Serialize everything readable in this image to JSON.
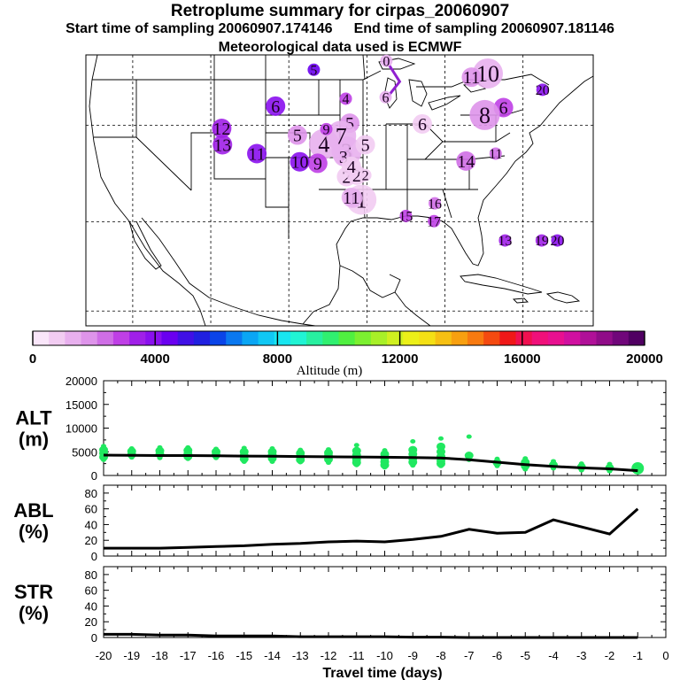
{
  "header": {
    "title": "Retroplume summary for cirpas_20060907",
    "subtitle_start": "Start time of sampling 20060907.174146",
    "subtitle_end": "End time of sampling 20060907.181146",
    "met_line": "Meteorological data used is ECMWF"
  },
  "colorbar": {
    "colors": [
      "#fae6fa",
      "#f2ccf2",
      "#e8b0ee",
      "#de94ea",
      "#cf6ee6",
      "#bf3fe6",
      "#a020e8",
      "#8a10ee",
      "#6a00f0",
      "#4010e6",
      "#2020e0",
      "#0a44e8",
      "#0a78f0",
      "#0aa6f4",
      "#10c8f4",
      "#18e6f0",
      "#20f4d4",
      "#28f0a0",
      "#30f070",
      "#50f040",
      "#7cf030",
      "#a8f028",
      "#d0f020",
      "#ecf018",
      "#f4e014",
      "#f6c012",
      "#f8a010",
      "#f87a10",
      "#f44a10",
      "#f01818",
      "#f01050",
      "#f0107a",
      "#e81090",
      "#d010a0",
      "#b01098",
      "#900c88",
      "#70067a",
      "#500062"
    ],
    "ticks": [
      "0",
      "4000",
      "8000",
      "12000",
      "16000",
      "20000"
    ],
    "label": "Altitude (m)"
  },
  "map": {
    "points": [
      {
        "label": "0",
        "lon": -87.5,
        "lat": 48.7,
        "alt": 1500,
        "size": 1
      },
      {
        "label": "1",
        "lon": -90.7,
        "lat": 30.0,
        "alt": 900,
        "size": 3
      },
      {
        "label": "1",
        "lon": -91.8,
        "lat": 30.2,
        "alt": 1300,
        "size": 2
      },
      {
        "label": "2",
        "lon": -92.6,
        "lat": 33.1,
        "alt": 1000,
        "size": 2
      },
      {
        "label": "2",
        "lon": -91.3,
        "lat": 33.3,
        "alt": 900,
        "size": 2
      },
      {
        "label": "2",
        "lon": -90.2,
        "lat": 33.3,
        "alt": 800,
        "size": 1
      },
      {
        "label": "3",
        "lon": -92.6,
        "lat": 36.5,
        "alt": 1200,
        "size": 3
      },
      {
        "label": "3",
        "lon": -93.0,
        "lat": 35.8,
        "alt": 1100,
        "size": 2
      },
      {
        "label": "4",
        "lon": -92.0,
        "lat": 34.5,
        "alt": 900,
        "size": 2
      },
      {
        "label": "4",
        "lon": -95.5,
        "lat": 37.5,
        "alt": 1400,
        "size": 3
      },
      {
        "label": "4",
        "lon": -92.7,
        "lat": 43.6,
        "alt": 2800,
        "size": 1
      },
      {
        "label": "5",
        "lon": -90.2,
        "lat": 37.4,
        "alt": 900,
        "size": 2
      },
      {
        "label": "5",
        "lon": -92.2,
        "lat": 40.3,
        "alt": 2000,
        "size": 2
      },
      {
        "label": "5",
        "lon": -98.9,
        "lat": 38.7,
        "alt": 1800,
        "size": 2
      },
      {
        "label": "5",
        "lon": -96.8,
        "lat": 47.5,
        "alt": 4300,
        "size": 1
      },
      {
        "label": "6",
        "lon": -87.6,
        "lat": 43.8,
        "alt": 1500,
        "size": 1
      },
      {
        "label": "6",
        "lon": -82.9,
        "lat": 40.2,
        "alt": 900,
        "size": 2
      },
      {
        "label": "6",
        "lon": -101.7,
        "lat": 42.6,
        "alt": 4100,
        "size": 2
      },
      {
        "label": "6",
        "lon": -72.5,
        "lat": 42.4,
        "alt": 2800,
        "size": 2
      },
      {
        "label": "7",
        "lon": -93.3,
        "lat": 38.6,
        "alt": 1200,
        "size": 3
      },
      {
        "label": "8",
        "lon": -74.9,
        "lat": 41.4,
        "alt": 1700,
        "size": 3
      },
      {
        "label": "9",
        "lon": -96.3,
        "lat": 34.9,
        "alt": 2800,
        "size": 2
      },
      {
        "label": "9",
        "lon": -95.2,
        "lat": 39.5,
        "alt": 2800,
        "size": 1
      },
      {
        "label": "10",
        "lon": -74.5,
        "lat": 47.0,
        "alt": 1500,
        "size": 3
      },
      {
        "label": "10",
        "lon": -98.6,
        "lat": 35.1,
        "alt": 3700,
        "size": 2
      },
      {
        "label": "11",
        "lon": -92.0,
        "lat": 30.3,
        "alt": 1300,
        "size": 2
      },
      {
        "label": "11",
        "lon": -76.6,
        "lat": 46.5,
        "alt": 1800,
        "size": 2
      },
      {
        "label": "11",
        "lon": -73.5,
        "lat": 36.2,
        "alt": 2400,
        "size": 1
      },
      {
        "label": "11",
        "lon": -104.1,
        "lat": 36.2,
        "alt": 4000,
        "size": 2
      },
      {
        "label": "12",
        "lon": -108.6,
        "lat": 39.6,
        "alt": 3500,
        "size": 2
      },
      {
        "label": "13",
        "lon": -108.5,
        "lat": 37.4,
        "alt": 3200,
        "size": 2
      },
      {
        "label": "13",
        "lon": -72.3,
        "lat": 24.5,
        "alt": 3500,
        "size": 1
      },
      {
        "label": "14",
        "lon": -77.3,
        "lat": 35.2,
        "alt": 2200,
        "size": 2
      },
      {
        "label": "15",
        "lon": -85.0,
        "lat": 27.8,
        "alt": 2800,
        "size": 1
      },
      {
        "label": "16",
        "lon": -81.3,
        "lat": 29.5,
        "alt": 2600,
        "size": 1
      },
      {
        "label": "17",
        "lon": -81.4,
        "lat": 27.1,
        "alt": 2800,
        "size": 1
      },
      {
        "label": "19",
        "lon": -67.6,
        "lat": 24.5,
        "alt": 3400,
        "size": 1
      },
      {
        "label": "20",
        "lon": -65.6,
        "lat": 24.5,
        "alt": 4200,
        "size": 1
      },
      {
        "label": "20",
        "lon": -67.5,
        "lat": 44.8,
        "alt": 4200,
        "size": 1
      }
    ]
  },
  "chart_data": [
    {
      "type": "scatter",
      "title": "ALT (m)",
      "panel_label_line1": "ALT",
      "panel_label_line2": "(m)",
      "xlabel": "Travel time (days)",
      "ylabel": "ALT (m)",
      "xlim": [
        -20,
        0
      ],
      "ylim": [
        0,
        20000
      ],
      "yticks": [
        "0",
        "5000",
        "10000",
        "15000",
        "20000"
      ],
      "mean_line": {
        "x": [
          -20,
          -19,
          -18,
          -17,
          -16,
          -15,
          -14,
          -13,
          -12,
          -11,
          -10,
          -9,
          -8,
          -7,
          -6,
          -5,
          -4,
          -3,
          -2,
          -1
        ],
        "y": [
          4300,
          4250,
          4200,
          4200,
          4150,
          4100,
          4050,
          4000,
          3950,
          3900,
          3850,
          3800,
          3700,
          3300,
          2800,
          2300,
          1900,
          1600,
          1400,
          1000
        ]
      },
      "particles": [
        {
          "x": -20,
          "y": [
            6200,
            5400,
            4700,
            3900,
            3300
          ]
        },
        {
          "x": -19,
          "y": [
            5700,
            5100,
            4400,
            3800
          ]
        },
        {
          "x": -18,
          "y": [
            5900,
            5200,
            4500,
            3700
          ]
        },
        {
          "x": -17,
          "y": [
            5900,
            5300,
            4600,
            4000,
            3500
          ]
        },
        {
          "x": -16,
          "y": [
            5600,
            5000,
            4300,
            3700
          ]
        },
        {
          "x": -15,
          "y": [
            5800,
            5000,
            4200,
            3500,
            2900
          ]
        },
        {
          "x": -14,
          "y": [
            5700,
            5000,
            4300,
            3600,
            2900
          ]
        },
        {
          "x": -13,
          "y": [
            5400,
            4700,
            4000,
            3300,
            2800
          ]
        },
        {
          "x": -12,
          "y": [
            5500,
            4800,
            4100,
            3400,
            2700
          ]
        },
        {
          "x": -11,
          "y": [
            6400,
            5200,
            4300,
            3400,
            2700,
            2200
          ]
        },
        {
          "x": -10,
          "y": [
            5300,
            4500,
            3700,
            2900,
            2200,
            1700
          ]
        },
        {
          "x": -9,
          "y": [
            7200,
            5400,
            4500,
            3600,
            2800,
            2100
          ]
        },
        {
          "x": -8,
          "y": [
            7800,
            6100,
            5000,
            4000,
            3100,
            2500,
            2000
          ]
        },
        {
          "x": -7,
          "y": [
            8200,
            4200,
            3300
          ]
        },
        {
          "x": -6,
          "y": [
            3500,
            2700,
            2000
          ]
        },
        {
          "x": -5,
          "y": [
            3600,
            2800,
            2000,
            1300
          ]
        },
        {
          "x": -4,
          "y": [
            3000,
            2200,
            1500
          ]
        },
        {
          "x": -3,
          "y": [
            2500,
            1800,
            1100
          ]
        },
        {
          "x": -2,
          "y": [
            2400,
            1600,
            900
          ]
        },
        {
          "x": -1,
          "y": [
            2200,
            1500,
            900
          ]
        }
      ],
      "particle_color": "#20e860"
    },
    {
      "type": "line",
      "title": "ABL (%)",
      "panel_label_line1": "ABL",
      "panel_label_line2": "(%)",
      "xlabel": "Travel time (days)",
      "ylabel": "ABL (%)",
      "xlim": [
        -20,
        0
      ],
      "ylim": [
        0,
        90
      ],
      "yticks": [
        "0",
        "20",
        "40",
        "60",
        "80"
      ],
      "x": [
        -20,
        -19,
        -18,
        -17,
        -16,
        -15,
        -14,
        -13,
        -12,
        -11,
        -10,
        -9,
        -8,
        -7,
        -6,
        -5,
        -4,
        -3,
        -2,
        -1
      ],
      "values": [
        10,
        10,
        10,
        11,
        12,
        13,
        15,
        16,
        18,
        19,
        18,
        21,
        25,
        34,
        29,
        30,
        46,
        37,
        28,
        60
      ]
    },
    {
      "type": "line",
      "title": "STR (%)",
      "panel_label_line1": "STR",
      "panel_label_line2": "(%)",
      "xlabel": "Travel time (days)",
      "ylabel": "STR (%)",
      "xlim": [
        -20,
        0
      ],
      "ylim": [
        0,
        90
      ],
      "yticks": [
        "0",
        "20",
        "40",
        "60",
        "80"
      ],
      "xticks": [
        "-20",
        "-19",
        "-18",
        "-17",
        "-16",
        "-15",
        "-14",
        "-13",
        "-12",
        "-11",
        "-10",
        "-9",
        "-8",
        "-7",
        "-6",
        "-5",
        "-4",
        "-3",
        "-2",
        "-1",
        "0"
      ],
      "x": [
        -20,
        -19,
        -18,
        -17,
        -16,
        -15,
        -14,
        -13,
        -12,
        -11,
        -10,
        -9,
        -8,
        -7,
        -6,
        -5,
        -4,
        -3,
        -2,
        -1
      ],
      "values": [
        4,
        4,
        3,
        3,
        2,
        2,
        2,
        1,
        1,
        1,
        1,
        0.5,
        0.5,
        0,
        0,
        0,
        0,
        0,
        0,
        0
      ]
    }
  ]
}
